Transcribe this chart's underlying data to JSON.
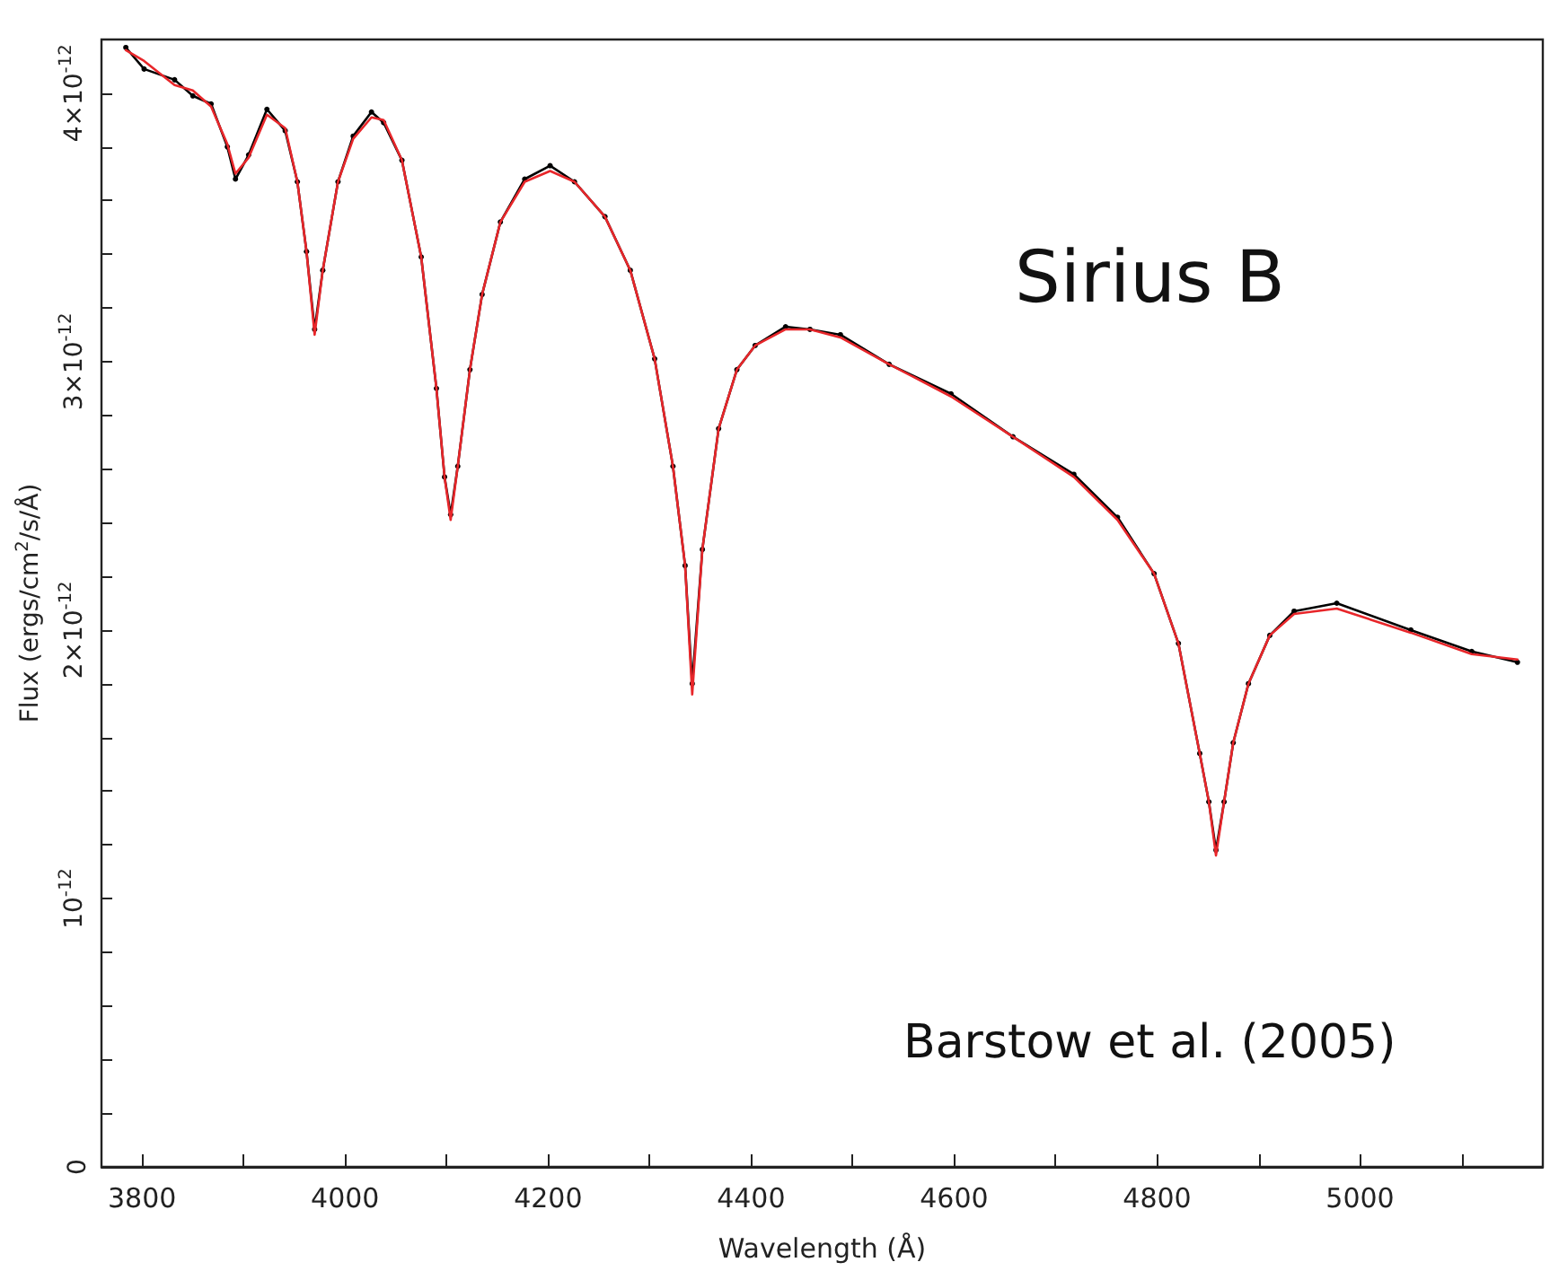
{
  "chart_data": {
    "type": "line",
    "xlabel": "Wavelength (Å)",
    "ylabel": "Flux (ergs/cm$^{2}$/s/Å)",
    "annotations": [
      "Sirius B",
      "Barstow et al. (2005)"
    ],
    "x": [
      3784,
      3802,
      3832,
      3850,
      3868,
      3884,
      3892,
      3905,
      3923,
      3941,
      3953,
      3962,
      3970,
      3978,
      3993,
      4008,
      4026,
      4038,
      4056,
      4075,
      4090,
      4098,
      4104,
      4111,
      4123,
      4135,
      4153,
      4177,
      4202,
      4226,
      4256,
      4281,
      4305,
      4323,
      4335,
      4342,
      4352,
      4368,
      4386,
      4404,
      4434,
      4458,
      4488,
      4536,
      4597,
      4658,
      4718,
      4761,
      4797,
      4821,
      4842,
      4851,
      4858,
      4866,
      4875,
      4890,
      4911,
      4935,
      4977,
      5050,
      5110,
      5155
    ],
    "series": [
      {
        "color": "#000000",
        "marker": "circle",
        "values": [
          4.17e-12,
          4.09e-12,
          4.05e-12,
          3.99e-12,
          3.96e-12,
          3.8e-12,
          3.68e-12,
          3.77e-12,
          3.94e-12,
          3.86e-12,
          3.67e-12,
          3.41e-12,
          3.12e-12,
          3.34e-12,
          3.67e-12,
          3.84e-12,
          3.93e-12,
          3.89e-12,
          3.75e-12,
          3.39e-12,
          2.9e-12,
          2.57e-12,
          2.43e-12,
          2.61e-12,
          2.97e-12,
          3.25e-12,
          3.52e-12,
          3.68e-12,
          3.73e-12,
          3.67e-12,
          3.54e-12,
          3.34e-12,
          3.01e-12,
          2.61e-12,
          2.24e-12,
          1.8e-12,
          2.3e-12,
          2.75e-12,
          2.97e-12,
          3.06e-12,
          3.13e-12,
          3.12e-12,
          3.1e-12,
          2.99e-12,
          2.88e-12,
          2.72e-12,
          2.58e-12,
          2.42e-12,
          2.21e-12,
          1.95e-12,
          1.54e-12,
          1.36e-12,
          1.18e-12,
          1.36e-12,
          1.58e-12,
          1.8e-12,
          1.98e-12,
          2.07e-12,
          2.1e-12,
          2e-12,
          1.92e-12,
          1.88e-12
        ]
      },
      {
        "color": "#e8262a",
        "marker": "none",
        "values": [
          4.16e-12,
          4.12e-12,
          4.03e-12,
          4.01e-12,
          3.95e-12,
          3.81e-12,
          3.7e-12,
          3.76e-12,
          3.92e-12,
          3.87e-12,
          3.67e-12,
          3.41e-12,
          3.1e-12,
          3.34e-12,
          3.67e-12,
          3.83e-12,
          3.91e-12,
          3.9e-12,
          3.75e-12,
          3.39e-12,
          2.9e-12,
          2.57e-12,
          2.41e-12,
          2.61e-12,
          2.97e-12,
          3.25e-12,
          3.52e-12,
          3.67e-12,
          3.71e-12,
          3.67e-12,
          3.54e-12,
          3.34e-12,
          3.01e-12,
          2.61e-12,
          2.24e-12,
          1.76e-12,
          2.3e-12,
          2.75e-12,
          2.97e-12,
          3.06e-12,
          3.12e-12,
          3.12e-12,
          3.09e-12,
          2.99e-12,
          2.87e-12,
          2.72e-12,
          2.57e-12,
          2.41e-12,
          2.21e-12,
          1.95e-12,
          1.54e-12,
          1.36e-12,
          1.16e-12,
          1.36e-12,
          1.58e-12,
          1.8e-12,
          1.98e-12,
          2.06e-12,
          2.08e-12,
          1.99e-12,
          1.91e-12,
          1.89e-12
        ]
      }
    ],
    "xlim": [
      3760,
      5180
    ],
    "xticks": [
      3800,
      {
        "value": 3900,
        "label": null
      },
      4000,
      {
        "value": 4100,
        "label": null
      },
      4200,
      {
        "value": 4300,
        "label": null
      },
      4400,
      {
        "value": 4500,
        "label": null
      },
      4600,
      {
        "value": 4700,
        "label": null
      },
      4800,
      {
        "value": 4900,
        "label": null
      },
      5000,
      {
        "value": 5100,
        "label": null
      }
    ],
    "ylim": [
      0,
      4.2e-12
    ],
    "yticks": [
      0,
      {
        "value": 2e-13,
        "label": null
      },
      {
        "value": 4e-13,
        "label": null
      },
      {
        "value": 6e-13,
        "label": null
      },
      {
        "value": 8e-13,
        "label": null
      },
      {
        "value": 1e-12,
        "label": "10$^{-12}$"
      },
      {
        "value": 1.2e-12,
        "label": null
      },
      {
        "value": 1.4e-12,
        "label": null
      },
      {
        "value": 1.6e-12,
        "label": null
      },
      {
        "value": 1.8e-12,
        "label": null
      },
      {
        "value": 2e-12,
        "label": "2×10$^{-12}$"
      },
      {
        "value": 2.2e-12,
        "label": null
      },
      {
        "value": 2.4e-12,
        "label": null
      },
      {
        "value": 2.6e-12,
        "label": null
      },
      {
        "value": 2.8e-12,
        "label": null
      },
      {
        "value": 3e-12,
        "label": "3×10$^{-12}$"
      },
      {
        "value": 3.2e-12,
        "label": null
      },
      {
        "value": 3.4e-12,
        "label": null
      },
      {
        "value": 3.6e-12,
        "label": null
      },
      {
        "value": 3.8e-12,
        "label": null
      },
      {
        "value": 4e-12,
        "label": "4×10$^{-12}$"
      }
    ],
    "grid": false,
    "line_style": "solid"
  }
}
